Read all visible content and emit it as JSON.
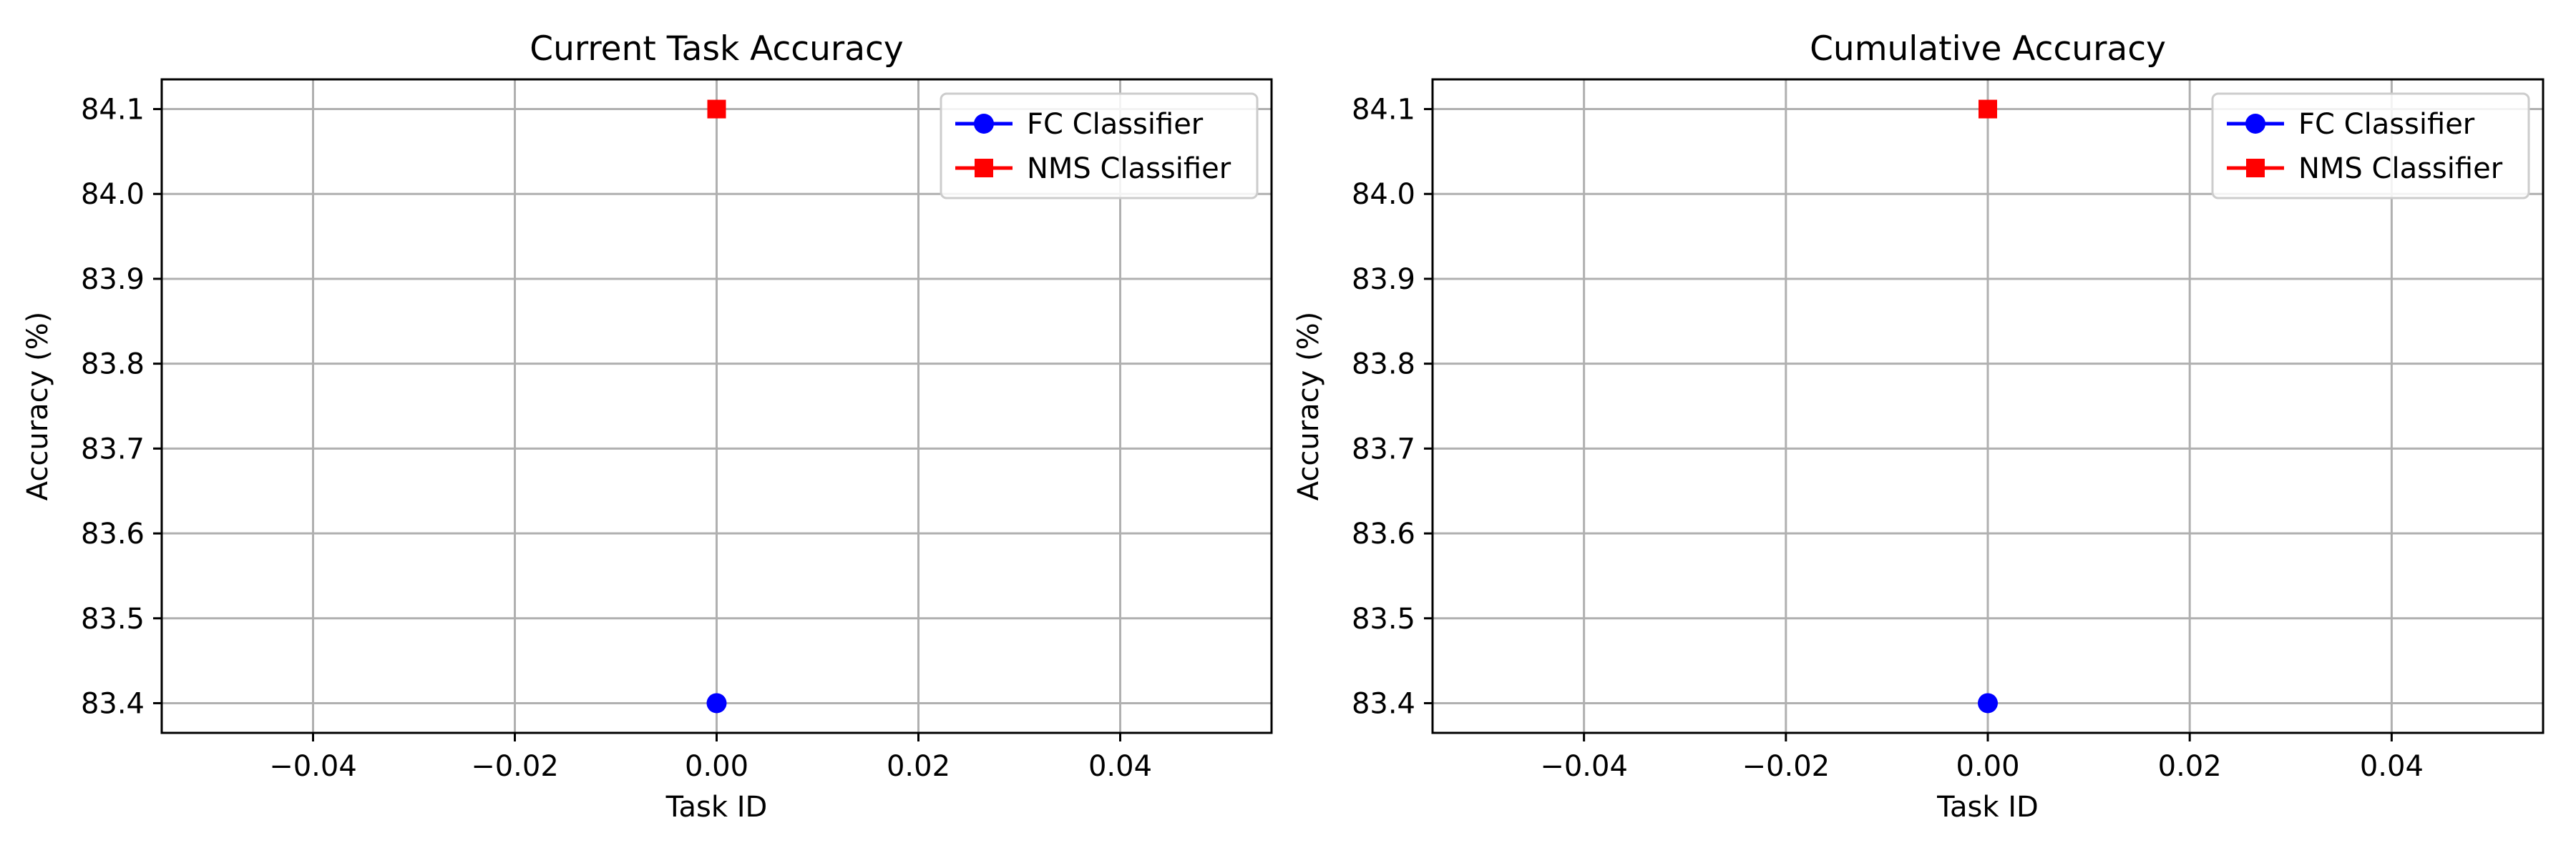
{
  "chart_data": [
    {
      "type": "line",
      "title": "Current Task Accuracy",
      "xlabel": "Task ID",
      "ylabel": "Accuracy (%)",
      "xlim": [
        -0.055,
        0.055
      ],
      "ylim": [
        83.365,
        84.135
      ],
      "xticks": [
        -0.04,
        -0.02,
        0.0,
        0.02,
        0.04
      ],
      "xtick_labels": [
        "−0.04",
        "−0.02",
        "0.00",
        "0.02",
        "0.04"
      ],
      "yticks": [
        83.4,
        83.5,
        83.6,
        83.7,
        83.8,
        83.9,
        84.0,
        84.1
      ],
      "ytick_labels": [
        "83.4",
        "83.5",
        "83.6",
        "83.7",
        "83.8",
        "83.9",
        "84.0",
        "84.1"
      ],
      "grid": true,
      "legend_position": "top-right",
      "series": [
        {
          "name": "FC Classifier",
          "color": "#0000ff",
          "marker": "circle",
          "x": [
            0
          ],
          "y": [
            83.4
          ]
        },
        {
          "name": "NMS Classifier",
          "color": "#ff0000",
          "marker": "square",
          "x": [
            0
          ],
          "y": [
            84.1
          ]
        }
      ]
    },
    {
      "type": "line",
      "title": "Cumulative Accuracy",
      "xlabel": "Task ID",
      "ylabel": "Accuracy (%)",
      "xlim": [
        -0.055,
        0.055
      ],
      "ylim": [
        83.365,
        84.135
      ],
      "xticks": [
        -0.04,
        -0.02,
        0.0,
        0.02,
        0.04
      ],
      "xtick_labels": [
        "−0.04",
        "−0.02",
        "0.00",
        "0.02",
        "0.04"
      ],
      "yticks": [
        83.4,
        83.5,
        83.6,
        83.7,
        83.8,
        83.9,
        84.0,
        84.1
      ],
      "ytick_labels": [
        "83.4",
        "83.5",
        "83.6",
        "83.7",
        "83.8",
        "83.9",
        "84.0",
        "84.1"
      ],
      "grid": true,
      "legend_position": "top-right",
      "series": [
        {
          "name": "FC Classifier",
          "color": "#0000ff",
          "marker": "circle",
          "x": [
            0
          ],
          "y": [
            83.4
          ]
        },
        {
          "name": "NMS Classifier",
          "color": "#ff0000",
          "marker": "square",
          "x": [
            0
          ],
          "y": [
            84.1
          ]
        }
      ]
    }
  ]
}
